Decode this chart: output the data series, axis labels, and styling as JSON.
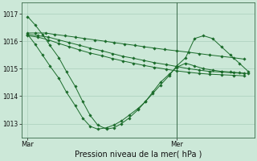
{
  "bg_color": "#cce8d8",
  "grid_color": "#aacfbc",
  "line_color": "#1a6b2a",
  "marker_color": "#1a6b2a",
  "xlabel": "Pression niveau de la mer( hPa )",
  "xlabel_fontsize": 7,
  "ylim": [
    1012.5,
    1017.4
  ],
  "yticks": [
    1013,
    1014,
    1015,
    1016,
    1017
  ],
  "figsize": [
    3.2,
    2.0
  ],
  "dpi": 100,
  "xtick_labels": [
    "Mar",
    "Mer"
  ],
  "xtick_pos": [
    0.0,
    1.0
  ],
  "vline_x": 1.0,
  "series_x": [
    [
      0.0,
      0.05,
      0.12,
      0.18,
      0.25,
      0.32,
      0.38,
      0.45,
      0.52,
      0.58,
      0.65,
      0.72,
      0.78,
      0.85,
      0.92,
      1.0,
      1.08,
      1.15,
      1.22,
      1.3,
      1.38,
      1.45
    ],
    [
      0.0,
      0.07,
      0.14,
      0.21,
      0.28,
      0.35,
      0.42,
      0.5,
      0.57,
      0.64,
      0.71,
      0.78,
      0.85,
      0.93,
      1.0,
      1.08,
      1.15,
      1.22,
      1.3,
      1.38,
      1.45
    ],
    [
      0.0,
      0.07,
      0.14,
      0.21,
      0.28,
      0.35,
      0.42,
      0.5,
      0.57,
      0.64,
      0.71,
      0.78,
      0.85,
      0.93,
      1.0,
      1.08,
      1.15,
      1.22,
      1.3,
      1.38,
      1.45
    ],
    [
      0.0,
      0.05,
      0.1,
      0.15,
      0.21,
      0.26,
      0.32,
      0.37,
      0.42,
      0.47,
      0.53,
      0.58,
      0.63,
      0.68,
      0.74,
      0.79,
      0.84,
      0.89,
      0.95,
      1.0,
      1.06,
      1.12,
      1.18,
      1.24,
      1.3,
      1.36,
      1.42,
      1.48
    ],
    [
      0.0,
      0.05,
      0.1,
      0.15,
      0.21,
      0.26,
      0.32,
      0.37,
      0.42,
      0.47,
      0.53,
      0.58,
      0.63,
      0.68,
      0.74,
      0.79,
      0.84,
      0.89,
      0.95,
      1.0,
      1.06,
      1.12,
      1.18,
      1.24,
      1.3,
      1.36,
      1.42,
      1.48
    ]
  ],
  "series_y": [
    [
      1016.3,
      1016.3,
      1016.3,
      1016.25,
      1016.2,
      1016.15,
      1016.1,
      1016.05,
      1016.0,
      1015.95,
      1015.9,
      1015.85,
      1015.8,
      1015.75,
      1015.7,
      1015.65,
      1015.6,
      1015.55,
      1015.5,
      1015.45,
      1015.4,
      1015.35
    ],
    [
      1016.25,
      1016.2,
      1016.15,
      1016.05,
      1015.95,
      1015.85,
      1015.75,
      1015.65,
      1015.55,
      1015.45,
      1015.38,
      1015.3,
      1015.22,
      1015.15,
      1015.08,
      1015.0,
      1014.95,
      1014.9,
      1014.88,
      1014.85,
      1014.83
    ],
    [
      1016.2,
      1016.15,
      1016.05,
      1015.92,
      1015.8,
      1015.68,
      1015.57,
      1015.47,
      1015.37,
      1015.28,
      1015.2,
      1015.12,
      1015.05,
      1014.98,
      1014.92,
      1014.87,
      1014.83,
      1014.8,
      1014.78,
      1014.76,
      1014.74
    ],
    [
      1016.25,
      1015.9,
      1015.5,
      1015.1,
      1014.65,
      1014.15,
      1013.65,
      1013.2,
      1012.9,
      1012.8,
      1012.85,
      1012.95,
      1013.1,
      1013.3,
      1013.55,
      1013.8,
      1014.1,
      1014.4,
      1014.75,
      1015.1,
      1015.4,
      1016.1,
      1016.2,
      1016.1,
      1015.8,
      1015.5,
      1015.2,
      1014.9
    ],
    [
      1016.9,
      1016.6,
      1016.25,
      1015.85,
      1015.4,
      1014.9,
      1014.35,
      1013.8,
      1013.3,
      1012.95,
      1012.8,
      1012.85,
      1013.0,
      1013.2,
      1013.5,
      1013.8,
      1014.15,
      1014.5,
      1014.8,
      1015.05,
      1015.2,
      1015.1,
      1015.0,
      1014.95,
      1014.9,
      1014.88,
      1014.85,
      1014.82
    ]
  ]
}
